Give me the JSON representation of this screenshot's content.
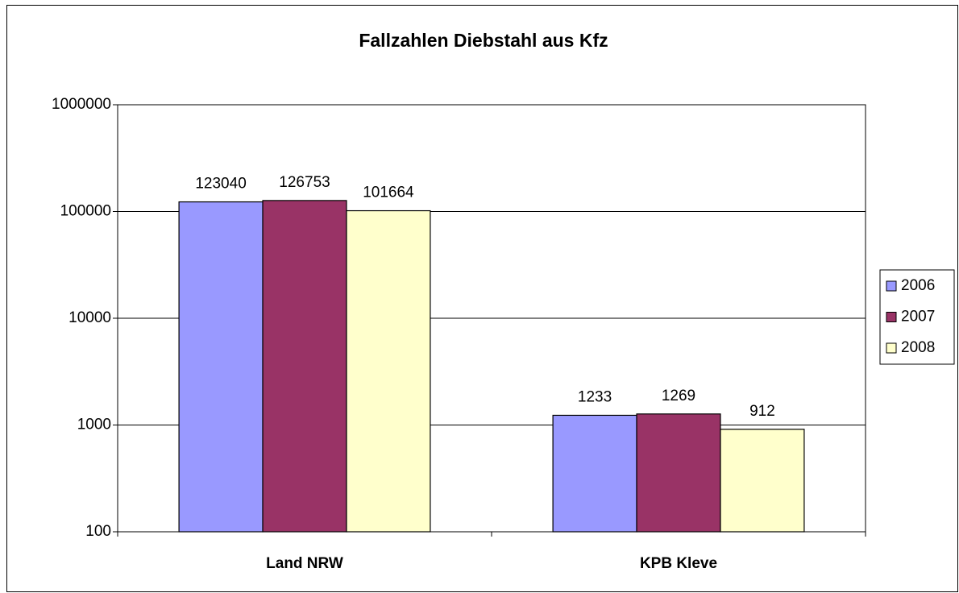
{
  "chart_data": {
    "type": "bar",
    "title": "Fallzahlen Diebstahl aus Kfz",
    "categories": [
      "Land NRW",
      "KPB Kleve"
    ],
    "series": [
      {
        "name": "2006",
        "color": "#9999ff",
        "values": [
          123040,
          1233
        ]
      },
      {
        "name": "2007",
        "color": "#993366",
        "values": [
          126753,
          1269
        ]
      },
      {
        "name": "2008",
        "color": "#ffffcc",
        "values": [
          101664,
          912
        ]
      }
    ],
    "ylim": [
      100,
      1000000
    ],
    "yticks": [
      100,
      1000,
      10000,
      100000,
      1000000
    ],
    "log_scale": true,
    "grid": true,
    "legend": "right"
  }
}
